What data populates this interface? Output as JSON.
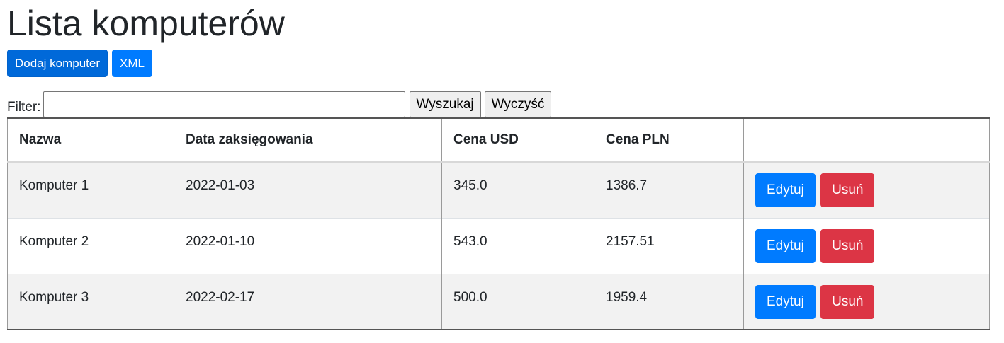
{
  "page": {
    "title": "Lista komputerów"
  },
  "toolbar": {
    "add_label": "Dodaj komputer",
    "xml_label": "XML"
  },
  "filter": {
    "label": "Filter:",
    "value": "",
    "search_label": "Wyszukaj",
    "clear_label": "Wyczyść"
  },
  "table": {
    "headers": {
      "name": "Nazwa",
      "date": "Data zaksięgowania",
      "usd": "Cena USD",
      "pln": "Cena PLN",
      "actions": ""
    },
    "rows": [
      {
        "name": "Komputer 1",
        "date": "2022-01-03",
        "usd": "345.0",
        "pln": "1386.7",
        "edit": "Edytuj",
        "delete": "Usuń"
      },
      {
        "name": "Komputer 2",
        "date": "2022-01-10",
        "usd": "543.0",
        "pln": "2157.51",
        "edit": "Edytuj",
        "delete": "Usuń"
      },
      {
        "name": "Komputer 3",
        "date": "2022-02-17",
        "usd": "500.0",
        "pln": "1959.4",
        "edit": "Edytuj",
        "delete": "Usuń"
      }
    ]
  },
  "colors": {
    "primary": "#007bff",
    "primary_dark": "#0069d9",
    "danger": "#dc3545",
    "stripe": "#f2f2f2"
  }
}
